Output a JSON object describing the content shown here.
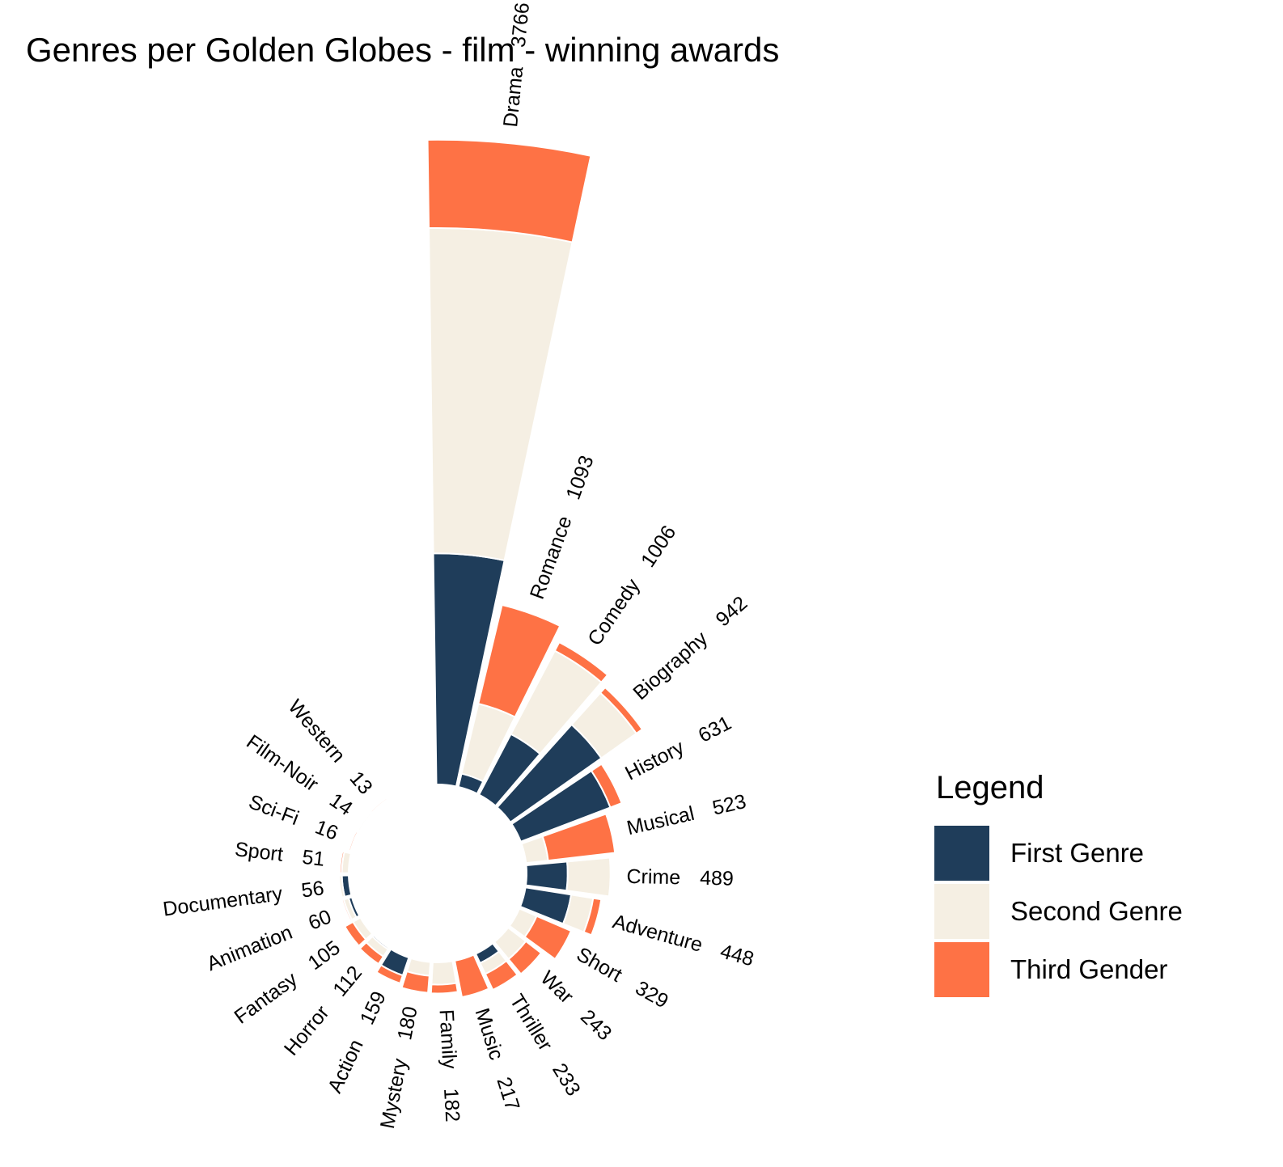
{
  "chart_data": {
    "type": "bar",
    "subtype": "circular-stacked",
    "title": "Genres per Golden Globes - film - winning awards",
    "categories": [
      "Drama",
      "Romance",
      "Comedy",
      "Biography",
      "History",
      "Musical",
      "Crime",
      "Adventure",
      "Short",
      "War",
      "Thriller",
      "Music",
      "Family",
      "Mystery",
      "Action",
      "Horror",
      "Fantasy",
      "Animation",
      "Documentary",
      "Sport",
      "Sci-Fi",
      "Film-Noir",
      "Western"
    ],
    "totals": [
      3766,
      1093,
      1006,
      942,
      631,
      523,
      489,
      448,
      329,
      243,
      233,
      217,
      182,
      180,
      159,
      112,
      105,
      60,
      56,
      51,
      16,
      14,
      13
    ],
    "series": [
      {
        "name": "First Genre",
        "color": "#1f3d5a",
        "values": [
          1350,
          80,
          400,
          650,
          560,
          0,
          240,
          270,
          0,
          0,
          60,
          0,
          0,
          0,
          110,
          10,
          0,
          20,
          40,
          0,
          0,
          0,
          0
        ]
      },
      {
        "name": "Second Genre",
        "color": "#f5efe3",
        "values": [
          1900,
          420,
          550,
          250,
          0,
          130,
          250,
          130,
          110,
          130,
          70,
          0,
          130,
          80,
          0,
          50,
          50,
          30,
          16,
          40,
          6,
          10,
          3
        ]
      },
      {
        "name": "Third Gender",
        "color": "#fe7245",
        "values": [
          516,
          593,
          56,
          42,
          71,
          393,
          0,
          48,
          219,
          113,
          103,
          217,
          52,
          100,
          49,
          52,
          55,
          10,
          0,
          11,
          10,
          4,
          10
        ]
      }
    ],
    "legend": {
      "title": "Legend",
      "position": "right"
    },
    "grid": false
  }
}
